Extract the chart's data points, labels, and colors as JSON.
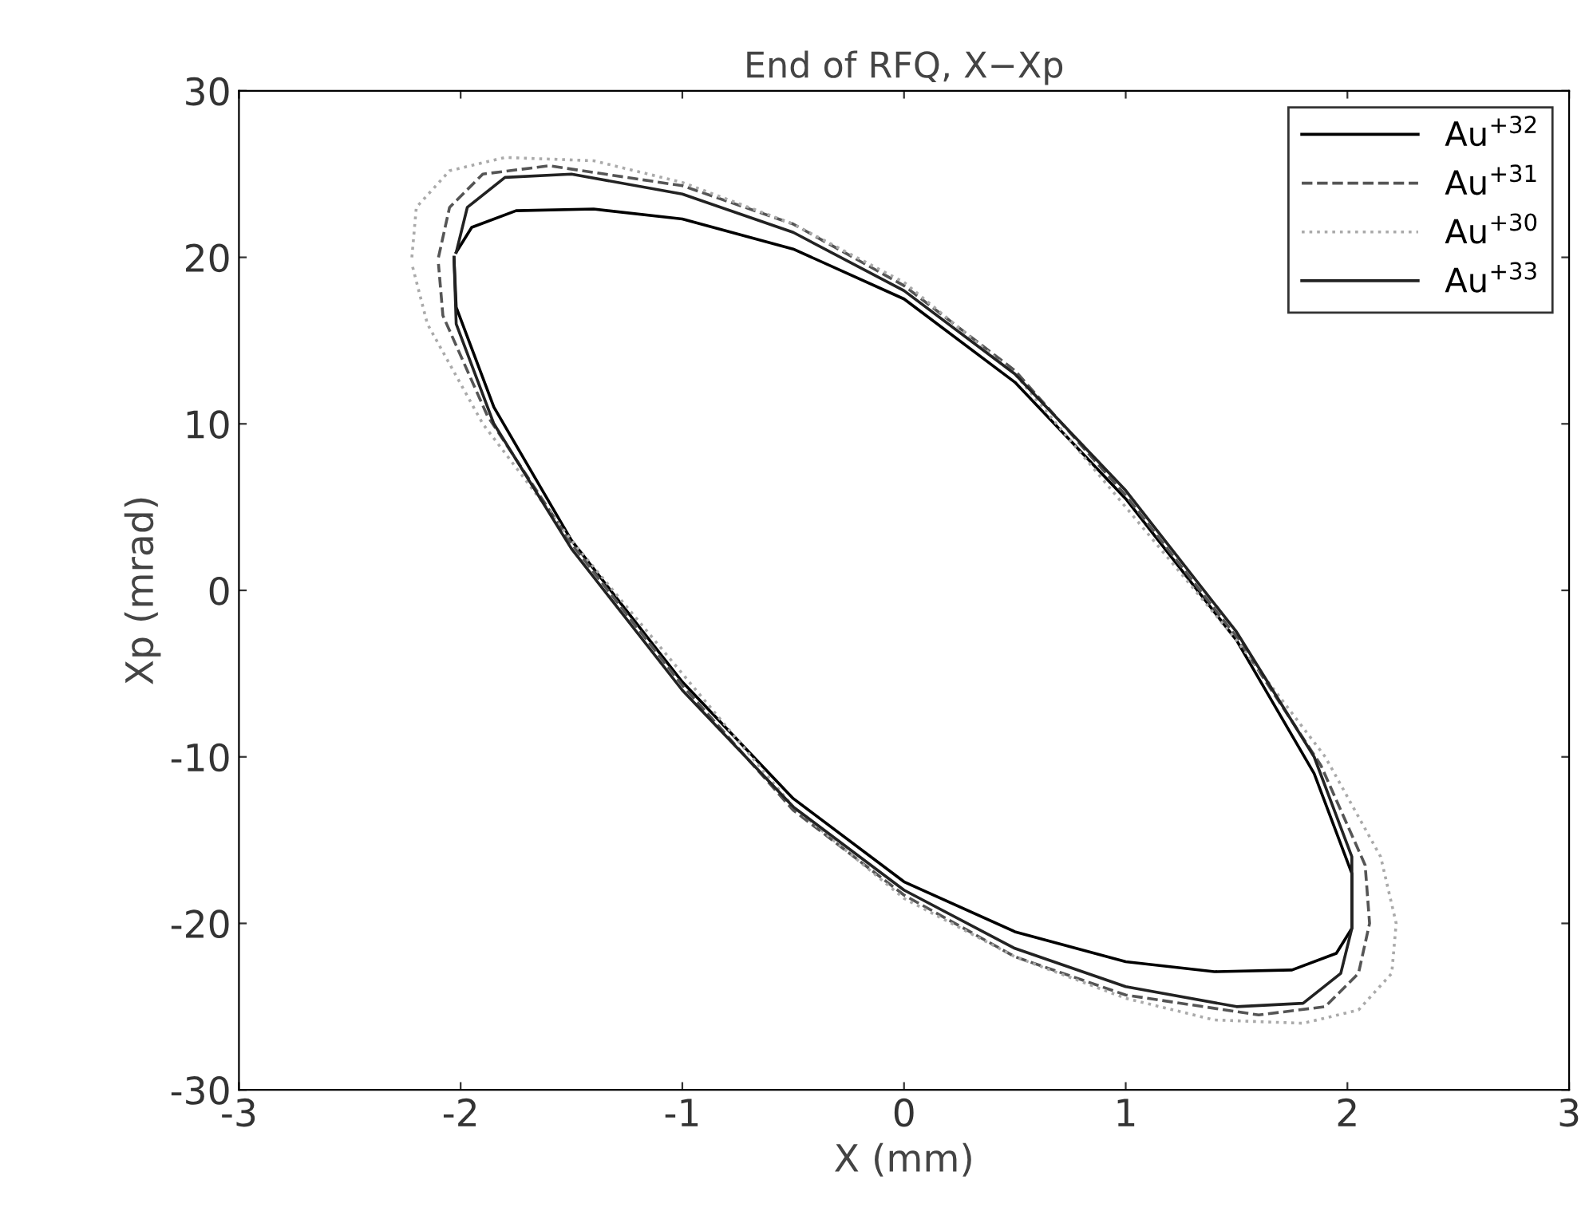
{
  "chart_data": {
    "type": "line",
    "title": "End of RFQ, X−Xp",
    "xlabel": "X (mm)",
    "ylabel": "Xp (mrad)",
    "xlim": [
      -3,
      3
    ],
    "ylim": [
      -30,
      30
    ],
    "xticks": [
      -3,
      -2,
      -1,
      0,
      1,
      2,
      3
    ],
    "yticks": [
      -30,
      -20,
      -10,
      0,
      10,
      20,
      30
    ],
    "grid": false,
    "legend": "top right",
    "marker": "none",
    "series": [
      {
        "name": "Au$^{+32}$",
        "color": "#000000",
        "line_style": "solid",
        "x": [
          -2.02,
          -1.95,
          -1.75,
          -1.4,
          -1,
          -0.5,
          0,
          0.5,
          1,
          1.5,
          1.85,
          2.02,
          2.02,
          1.95,
          1.75,
          1.4,
          1,
          0.5,
          0,
          -0.5,
          -1,
          -1.5,
          -1.85,
          -2.02,
          -2.03
        ],
        "values": [
          20.3,
          21.8,
          22.8,
          22.9,
          22.3,
          20.5,
          17.5,
          12.5,
          5.5,
          -3,
          -11,
          -17,
          -20.3,
          -21.8,
          -22.8,
          -22.9,
          -22.3,
          -20.5,
          -17.5,
          -12.5,
          -5.5,
          3,
          11,
          17,
          20
        ]
      },
      {
        "name": "Au$^{+31}$",
        "color": "#555555",
        "line_style": "dashed",
        "x": [
          -2.1,
          -2.05,
          -1.9,
          -1.6,
          -1,
          -0.5,
          0,
          0.5,
          1,
          1.5,
          1.88,
          2.08,
          2.1,
          2.05,
          1.9,
          1.6,
          1,
          0.5,
          0,
          -0.5,
          -1,
          -1.5,
          -1.88,
          -2.08,
          -2.1
        ],
        "values": [
          20,
          23,
          25,
          25.5,
          24.3,
          22,
          18.3,
          13.2,
          5.7,
          -2.8,
          -10.5,
          -16.5,
          -20,
          -23,
          -25,
          -25.5,
          -24.3,
          -22,
          -18.3,
          -13.2,
          -5.7,
          2.8,
          10.5,
          16.5,
          19.6
        ]
      },
      {
        "name": "Au$^{+30}$",
        "color": "#aaaaaa",
        "line_style": "dotted",
        "x": [
          -2.22,
          -2.2,
          -2.05,
          -1.8,
          -1.4,
          -1,
          -0.5,
          0,
          0.5,
          1,
          1.5,
          1.9,
          2.15,
          2.22,
          2.2,
          2.05,
          1.8,
          1.4,
          1,
          0.5,
          0,
          -0.5,
          -1,
          -1.5,
          -1.9,
          -2.15,
          -2.22
        ],
        "values": [
          20,
          23,
          25.2,
          26,
          25.8,
          24.5,
          22,
          18.5,
          13,
          5,
          -3,
          -10,
          -16,
          -20,
          -23,
          -25.2,
          -26,
          -25.8,
          -24.5,
          -22,
          -18.5,
          -13,
          -5,
          3,
          10,
          16,
          19.6
        ]
      },
      {
        "name": "Au$^{+33}$",
        "color": "#222222",
        "line_style": "solid",
        "x": [
          -2.02,
          -1.97,
          -1.8,
          -1.5,
          -1,
          -0.5,
          0,
          0.5,
          1,
          1.5,
          1.85,
          2.02,
          2.02,
          1.97,
          1.8,
          1.5,
          1,
          0.5,
          0,
          -0.5,
          -1,
          -1.5,
          -1.85,
          -2.02,
          -2.03
        ],
        "values": [
          20.3,
          23,
          24.8,
          25,
          23.8,
          21.5,
          18,
          13,
          6,
          -2.5,
          -10,
          -16,
          -20.3,
          -23,
          -24.8,
          -25,
          -23.8,
          -21.5,
          -18,
          -13,
          -6,
          2.5,
          10,
          16,
          20
        ]
      }
    ]
  }
}
